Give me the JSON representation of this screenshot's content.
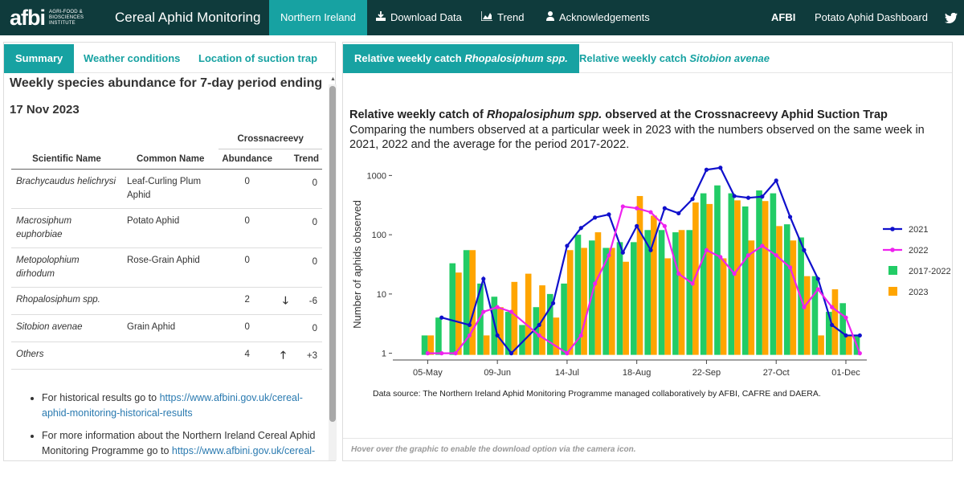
{
  "navbar": {
    "logo": "afbi",
    "logo_sub": "AGRI-FOOD & BIOSCIENCES INSTITUTE",
    "app_title": "Cereal Aphid Monitoring",
    "tabs": {
      "northern_ireland": "Northern Ireland",
      "download": "Download Data",
      "trend": "Trend",
      "acknowledgements": "Acknowledgements"
    },
    "right": {
      "afbi": "AFBI",
      "potato": "Potato Aphid Dashboard"
    }
  },
  "left": {
    "tabs": {
      "summary": "Summary",
      "weather": "Weather conditions",
      "location": "Location of suction trap"
    },
    "heading": "Weekly species abundance for 7-day period ending",
    "date": "17 Nov 2023",
    "table": {
      "group_header": "Crossnacreevy",
      "col_sci": "Scientific Name",
      "col_common": "Common Name",
      "col_abundance": "Abundance",
      "col_trend": "Trend",
      "rows": [
        {
          "sci": "Brachycaudus helichrysi",
          "common": "Leaf-Curling Plum Aphid",
          "abundance": "0",
          "arrow": "",
          "trend": "0"
        },
        {
          "sci": "Macrosiphum euphorbiae",
          "common": "Potato Aphid",
          "abundance": "0",
          "arrow": "",
          "trend": "0"
        },
        {
          "sci": "Metopolophium dirhodum",
          "common": "Rose-Grain Aphid",
          "abundance": "0",
          "arrow": "",
          "trend": "0"
        },
        {
          "sci": "Rhopalosiphum spp.",
          "common": "",
          "abundance": "2",
          "arrow": "🡓",
          "trend": "-6"
        },
        {
          "sci": "Sitobion avenae",
          "common": "Grain Aphid",
          "abundance": "0",
          "arrow": "",
          "trend": "0"
        },
        {
          "sci": "Others",
          "common": "",
          "abundance": "4",
          "arrow": "🡑",
          "trend": "+3"
        }
      ]
    },
    "notes": [
      {
        "text": "For historical results go to ",
        "link": "https://www.afbini.gov.uk/cereal-aphid-monitoring-historical-results"
      },
      {
        "text": "For more information about the Northern Ireland Cereal Aphid Monitoring Programme go to ",
        "link": "https://www.afbini.gov.uk/cereal-"
      }
    ]
  },
  "right": {
    "tabs": {
      "rhop_prefix": "Relative weekly catch ",
      "rhop_species": "Rhopalosiphum spp.",
      "sito_prefix": "Relative weekly catch ",
      "sito_species": "Sitobion avenae"
    },
    "title_prefix": "Relative weekly catch of ",
    "title_species": "Rhopalosiphum spp.",
    "title_suffix": " observed at the Crossnacreevy Aphid Suction Trap",
    "subtitle": "Comparing the numbers observed at a particular week in 2023 with the numbers observed on the same week in 2021, 2022 and the average for the period 2017-2022.",
    "data_source": "Data source: The Northern Ireland Aphid Monitoring Programme managed collaboratively by AFBI, CAFRE and DAERA.",
    "footer": "Hover over the graphic to enable the download option via the camera icon."
  },
  "colors": {
    "navbar": "#0f3b3c",
    "accent": "#17a2a2",
    "s2021": "#1010cc",
    "s2022": "#ee22ee",
    "avg": "#22cc66",
    "s2023": "#ffa500"
  },
  "chart_data": {
    "type": "bar",
    "title": "Relative weekly catch of Rhopalosiphum spp. observed at the Crossnacreevy Aphid Suction Trap",
    "ylabel": "Number of aphids observed",
    "yscale": "log",
    "ylim": [
      1,
      1000
    ],
    "y_ticks": [
      "1",
      "10",
      "100",
      "1000"
    ],
    "x_ticks": [
      "05-May",
      "09-Jun",
      "14-Jul",
      "18-Aug",
      "22-Sep",
      "27-Oct",
      "01-Dec"
    ],
    "x_dates": [
      "2023-04-21",
      "2023-04-28",
      "2023-05-05",
      "2023-05-12",
      "2023-05-19",
      "2023-05-26",
      "2023-06-02",
      "2023-06-09",
      "2023-06-16",
      "2023-06-23",
      "2023-06-30",
      "2023-07-07",
      "2023-07-14",
      "2023-07-21",
      "2023-07-28",
      "2023-08-04",
      "2023-08-11",
      "2023-08-18",
      "2023-08-25",
      "2023-09-01",
      "2023-09-08",
      "2023-09-15",
      "2023-09-22",
      "2023-09-29",
      "2023-10-06",
      "2023-10-13",
      "2023-10-20",
      "2023-10-27",
      "2023-11-03",
      "2023-11-10",
      "2023-11-17",
      "2023-11-24",
      "2023-12-01",
      "2023-12-08"
    ],
    "legend": "right",
    "series": [
      {
        "name": "2021",
        "kind": "line",
        "values": [
          null,
          null,
          1,
          1,
          null,
          null,
          null,
          null,
          null,
          null,
          null,
          null,
          null,
          null,
          null,
          null,
          null,
          null,
          null,
          null,
          null,
          null,
          null,
          null,
          null,
          null,
          null,
          null,
          null,
          null,
          null,
          null,
          null,
          null
        ],
        "points": [
          [
            3,
            4
          ],
          [
            5,
            3
          ],
          [
            6,
            18
          ],
          [
            7,
            2
          ],
          [
            8,
            1
          ],
          [
            10,
            3
          ],
          [
            11,
            7
          ],
          [
            12,
            65
          ],
          [
            13,
            130
          ],
          [
            14,
            195
          ],
          [
            15,
            220
          ],
          [
            16,
            50
          ],
          [
            17,
            140
          ],
          [
            18,
            55
          ],
          [
            19,
            280
          ],
          [
            20,
            230
          ],
          [
            21,
            400
          ],
          [
            22,
            1250
          ],
          [
            23,
            1350
          ],
          [
            24,
            450
          ],
          [
            25,
            420
          ],
          [
            26,
            440
          ],
          [
            27,
            820
          ],
          [
            28,
            200
          ],
          [
            29,
            55
          ],
          [
            30,
            18
          ],
          [
            31,
            3
          ],
          [
            32,
            2
          ],
          [
            33,
            2
          ]
        ]
      },
      {
        "name": "2022",
        "kind": "line",
        "points": [
          [
            2,
            1
          ],
          [
            3,
            1
          ],
          [
            4,
            1
          ],
          [
            5,
            2
          ],
          [
            6,
            5
          ],
          [
            7,
            6
          ],
          [
            8,
            5
          ],
          [
            10,
            2
          ],
          [
            12,
            1
          ],
          [
            13,
            2
          ],
          [
            14,
            15
          ],
          [
            15,
            45
          ],
          [
            16,
            300
          ],
          [
            17,
            280
          ],
          [
            18,
            240
          ],
          [
            19,
            140
          ],
          [
            20,
            22
          ],
          [
            21,
            15
          ],
          [
            22,
            55
          ],
          [
            23,
            42
          ],
          [
            24,
            22
          ],
          [
            25,
            45
          ],
          [
            26,
            65
          ],
          [
            27,
            45
          ],
          [
            28,
            28
          ],
          [
            29,
            6
          ],
          [
            30,
            12
          ],
          [
            31,
            6
          ],
          [
            32,
            4
          ],
          [
            33,
            1
          ]
        ]
      },
      {
        "name": "2017-2022",
        "kind": "bar",
        "points": [
          [
            2,
            2
          ],
          [
            3,
            4
          ],
          [
            4,
            33
          ],
          [
            5,
            55
          ],
          [
            6,
            15
          ],
          [
            7,
            9
          ],
          [
            8,
            5
          ],
          [
            9,
            3
          ],
          [
            10,
            6
          ],
          [
            11,
            10
          ],
          [
            12,
            15
          ],
          [
            13,
            100
          ],
          [
            14,
            80
          ],
          [
            15,
            60
          ],
          [
            16,
            75
          ],
          [
            17,
            75
          ],
          [
            18,
            120
          ],
          [
            19,
            120
          ],
          [
            20,
            110
          ],
          [
            21,
            120
          ],
          [
            22,
            500
          ],
          [
            23,
            680
          ],
          [
            24,
            500
          ],
          [
            25,
            300
          ],
          [
            26,
            560
          ],
          [
            27,
            500
          ],
          [
            28,
            150
          ],
          [
            29,
            90
          ],
          [
            30,
            20
          ],
          [
            31,
            5
          ],
          [
            32,
            7
          ],
          [
            33,
            2
          ]
        ]
      },
      {
        "name": "2023",
        "kind": "bar",
        "points": [
          [
            2,
            2
          ],
          [
            4,
            23
          ],
          [
            5,
            55
          ],
          [
            6,
            2
          ],
          [
            7,
            6
          ],
          [
            8,
            16
          ],
          [
            9,
            22
          ],
          [
            10,
            14
          ],
          [
            11,
            4
          ],
          [
            12,
            55
          ],
          [
            13,
            60
          ],
          [
            14,
            110
          ],
          [
            15,
            60
          ],
          [
            16,
            35
          ],
          [
            17,
            450
          ],
          [
            18,
            210
          ],
          [
            19,
            40
          ],
          [
            20,
            120
          ],
          [
            21,
            350
          ],
          [
            22,
            330
          ],
          [
            23,
            40
          ],
          [
            24,
            380
          ],
          [
            25,
            80
          ],
          [
            26,
            370
          ],
          [
            27,
            140
          ],
          [
            28,
            80
          ],
          [
            29,
            20
          ],
          [
            30,
            2
          ],
          [
            31,
            12
          ],
          [
            32,
            2
          ]
        ]
      }
    ]
  }
}
